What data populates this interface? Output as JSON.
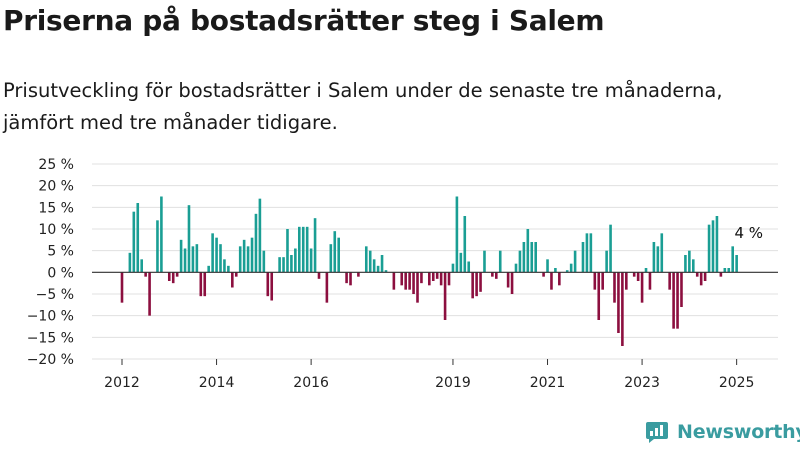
{
  "title": "Priserna på bostadsrätter steg i Salem",
  "subtitle": "Prisutveckling för bostadsrätter i Salem under de senaste tre månaderna, jämfört med tre månader tidigare.",
  "brand": "Newsworthy",
  "colors": {
    "positive": "#1a9e94",
    "negative": "#8c0f3f",
    "grid": "#e0e0e0",
    "brand": "#3a9ca0"
  },
  "chart_data": {
    "type": "bar",
    "ylim": [
      -20,
      25
    ],
    "yticks": [
      25,
      20,
      15,
      10,
      5,
      0,
      -5,
      -10,
      -15,
      -20
    ],
    "ytick_labels": [
      "25 %",
      "20 %",
      "15 %",
      "10 %",
      "5 %",
      "0 %",
      "−5 %",
      "−10 %",
      "−15 %",
      "−20 %"
    ],
    "xtick_labels": [
      {
        "label": "2012",
        "index": 0
      },
      {
        "label": "2014",
        "index": 24
      },
      {
        "label": "2016",
        "index": 48
      },
      {
        "label": "2019",
        "index": 84
      },
      {
        "label": "2021",
        "index": 108
      },
      {
        "label": "2023",
        "index": 132
      },
      {
        "label": "2025",
        "index": 156
      }
    ],
    "annotation": {
      "text": "4 %",
      "index": 159
    },
    "grid": true,
    "frequency": "monthly",
    "values": [
      -7,
      0,
      4.5,
      14,
      16,
      3,
      -1,
      -10,
      0,
      12,
      17.5,
      0,
      -2,
      -2.5,
      -1,
      7.5,
      5.5,
      15.5,
      6,
      6.5,
      -5.5,
      -5.5,
      1.5,
      9,
      8,
      6.5,
      3,
      1.5,
      -3.5,
      -1,
      6,
      7.5,
      6,
      8,
      13.5,
      17,
      5,
      -5.5,
      -6.5,
      0,
      3.5,
      3.5,
      10,
      4,
      5.5,
      10.5,
      10.5,
      10.5,
      5.5,
      12.5,
      -1.5,
      0,
      -7,
      6.5,
      9.5,
      8,
      0,
      -2.5,
      -3,
      0,
      -1,
      0,
      6,
      5,
      3,
      1.5,
      4,
      0.5,
      0,
      -4,
      0,
      -3,
      -4,
      -4,
      -5,
      -7,
      -2.5,
      0,
      -3,
      -2,
      -1.5,
      -3,
      -11,
      -3,
      2,
      17.5,
      4.5,
      13,
      2.5,
      -6,
      -5.5,
      -4.5,
      5,
      0,
      -1,
      -1.5,
      5,
      0,
      -3.5,
      -5,
      2,
      5,
      7,
      10,
      7,
      7,
      0,
      -1,
      3,
      -4,
      1,
      -3,
      0,
      0.5,
      2,
      5,
      0,
      7,
      9,
      9,
      -4,
      -11,
      -4,
      5,
      11,
      -7,
      -14,
      -17,
      -4,
      0,
      -1,
      -2,
      -7,
      1,
      -4,
      7,
      6,
      9,
      0,
      -4,
      -13,
      -13,
      -8,
      4,
      5,
      3,
      -1,
      -3,
      -2,
      11,
      12,
      13,
      -1,
      1,
      1,
      6,
      4
    ]
  }
}
